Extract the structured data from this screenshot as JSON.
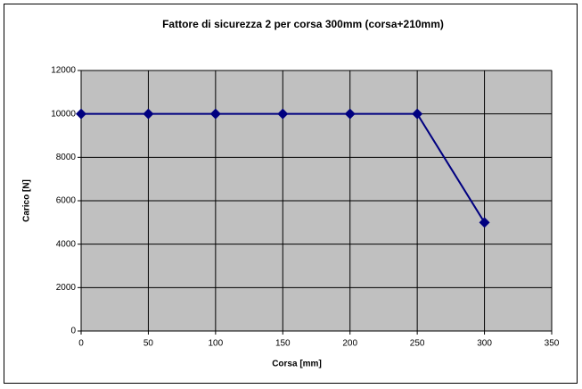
{
  "chart_data": {
    "type": "line",
    "title": "Fattore di sicurezza 2 per corsa 300mm (corsa+210mm)",
    "x_label": "Corsa [mm]",
    "y_label": "Carico [N]",
    "x": [
      0,
      50,
      100,
      150,
      200,
      250,
      300
    ],
    "series": [
      {
        "color": "#000080",
        "values": [
          10000,
          10000,
          10000,
          10000,
          10000,
          10000,
          5000
        ]
      }
    ],
    "xlim": [
      0,
      350
    ],
    "xticks": [
      0,
      50,
      100,
      150,
      200,
      250,
      300,
      350
    ],
    "ylim": [
      0,
      12000
    ],
    "yticks": [
      0,
      2000,
      4000,
      6000,
      8000,
      10000,
      12000
    ],
    "grid": true,
    "plot_background": "#c0c0c0"
  }
}
